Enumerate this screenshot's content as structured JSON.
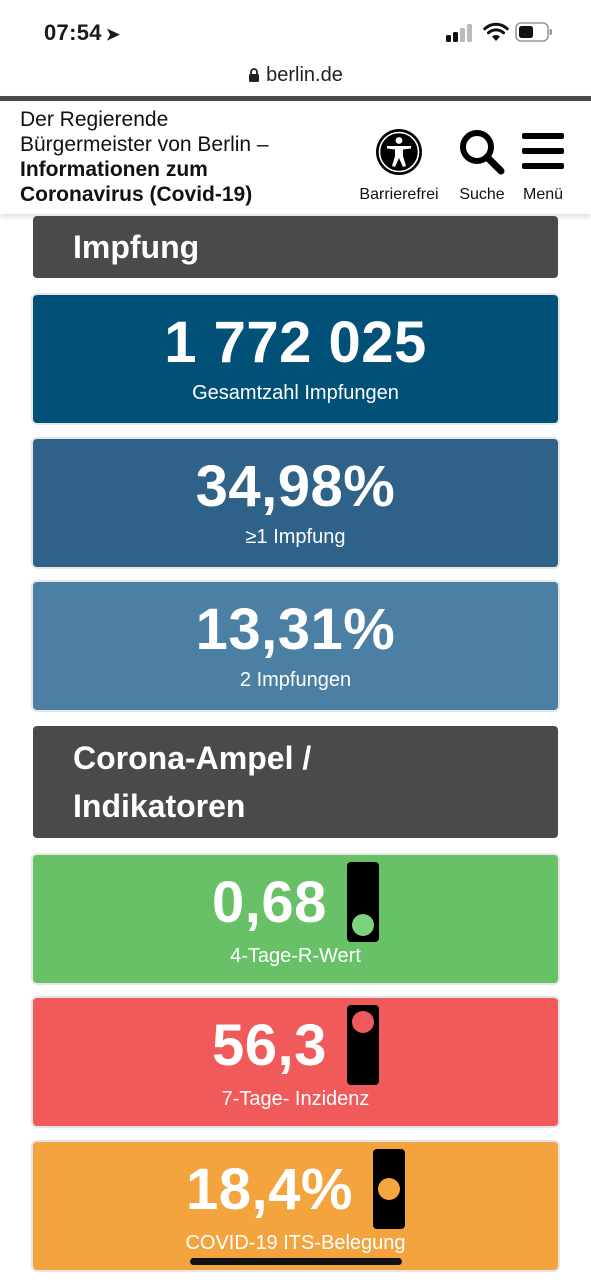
{
  "status_bar": {
    "time": "07:54",
    "location_icon": "location-arrow-icon",
    "signal_icon": "cellular-signal-icon",
    "wifi_icon": "wifi-icon",
    "battery_icon": "battery-icon"
  },
  "browser": {
    "url": "berlin.de",
    "lock_icon": "lock-icon"
  },
  "header": {
    "title_line1": "Der Regierende",
    "title_line2": "Bürgermeister von Berlin –",
    "title_line3": "Informationen zum",
    "title_line4": "Coronavirus (Covid-19)",
    "accessibility_label": "Barrierefrei",
    "search_label": "Suche",
    "menu_label": "Menü"
  },
  "sections": {
    "vaccination": {
      "heading": "Impfung",
      "total": {
        "value": "1 772 025",
        "label": "Gesamtzahl Impfungen",
        "color": "#005077"
      },
      "first_dose": {
        "value": "34,98%",
        "label": "≥1 Impfung",
        "color": "#2f6289"
      },
      "second_dose": {
        "value": "13,31%",
        "label": "2 Impfungen",
        "color": "#4b7fa4"
      }
    },
    "indicators": {
      "heading_line1": "Corona-Ampel /",
      "heading_line2": "Indikatoren",
      "r_value": {
        "value": "0,68",
        "label": "4-Tage-R-Wert",
        "color": "#69c167",
        "light": "green",
        "light_color": "#7ed27c"
      },
      "incidence": {
        "value": "56,3",
        "label": "7-Tage- Inzidenz",
        "color": "#f05a5a",
        "light": "red",
        "light_color": "#ee5a5a"
      },
      "icu": {
        "value": "18,4%",
        "label": "COVID-19 ITS-Belegung",
        "color": "#f3a43f",
        "light": "yellow",
        "light_color": "#f6a63d"
      }
    }
  }
}
